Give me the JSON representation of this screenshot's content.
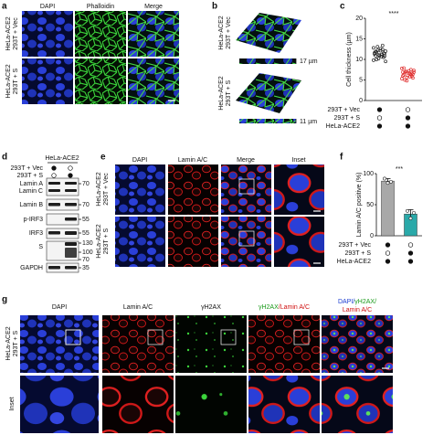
{
  "panels": {
    "a": {
      "label": "a",
      "columns": [
        "DAPI",
        "Phalloidin",
        "Merge"
      ],
      "rows": [
        [
          "HeLa-ACE2",
          "293T + Vec"
        ],
        [
          "HeLa-ACE2",
          "293T + S"
        ]
      ]
    },
    "b": {
      "label": "b",
      "rows": [
        [
          "HeLa-ACE2",
          "293T + Vec"
        ],
        [
          "HeLa-ACE2",
          "293T + S"
        ]
      ],
      "scale_labels": [
        "17 µm",
        "11 µm"
      ]
    },
    "c": {
      "label": "c"
    },
    "d": {
      "label": "d",
      "cell_line": "HeLa-ACE2",
      "conditions": {
        "rows": [
          "293T + Vec",
          "293T + S"
        ],
        "matrix": [
          [
            true,
            false
          ],
          [
            false,
            true
          ]
        ]
      },
      "bands": [
        "Lamin A",
        "Lamin C",
        "Lamin B",
        "p-IRF3",
        "IRF3",
        "S",
        "GAPDH"
      ],
      "markers": [
        70,
        70,
        55,
        55,
        130,
        100,
        70,
        35
      ]
    },
    "e": {
      "label": "e",
      "columns": [
        "DAPI",
        "Lamin A/C",
        "Merge",
        "Inset"
      ],
      "rows": [
        [
          "HeLa-ACE2",
          "293T + Vec"
        ],
        [
          "HeLa-ACE2",
          "293T + S"
        ]
      ]
    },
    "f": {
      "label": "f"
    },
    "g": {
      "label": "g",
      "columns": [
        [
          "DAPI"
        ],
        [
          "Lamin A/C"
        ],
        [
          "γH2AX"
        ],
        [
          "γH2AX",
          "/Lamin A/C"
        ],
        [
          "DAPI/",
          "γH2AX/",
          "Lamin A/C"
        ]
      ],
      "rows": [
        [
          "HeLa-ACE2",
          "293T + S"
        ],
        [
          "Inset"
        ]
      ]
    }
  },
  "chart_data": [
    {
      "type": "strip",
      "ylabel": "Cell thickness (µm)",
      "ylim": [
        0,
        20
      ],
      "yticks": [
        0,
        5,
        10,
        15,
        20
      ],
      "annotation": "****",
      "series": [
        {
          "color": "#222222",
          "values": [
            12.8,
            12.1,
            11.6,
            11.2,
            10.9,
            12.4,
            11.8,
            10.5,
            13.1,
            11.4,
            10.2,
            12.0,
            11.0,
            9.8,
            12.6,
            11.3,
            10.7,
            11.9,
            13.4,
            10.0,
            11.5,
            12.2,
            10.8,
            11.1,
            9.5
          ]
        },
        {
          "color": "#e03030",
          "values": [
            7.8,
            7.2,
            6.9,
            6.5,
            6.2,
            7.5,
            6.8,
            5.9,
            7.0,
            6.4,
            5.6,
            7.3,
            6.1,
            5.3,
            6.7,
            6.0,
            5.8,
            7.9,
            6.3,
            5.0,
            6.6,
            7.1,
            5.5,
            4.8,
            6.9
          ]
        }
      ],
      "conditions": {
        "rows": [
          "293T + Vec",
          "293T + S",
          "HeLa-ACE2"
        ],
        "matrix": [
          [
            true,
            false
          ],
          [
            false,
            true
          ],
          [
            true,
            true
          ]
        ]
      }
    },
    {
      "type": "bar",
      "ylabel": "Lamin A/C positive (%)",
      "ylim": [
        0,
        100
      ],
      "yticks": [
        0,
        50,
        100
      ],
      "annotation": "***",
      "values": [
        88,
        35
      ],
      "errors": [
        4,
        7
      ],
      "points": [
        [
          92,
          85,
          87
        ],
        [
          40,
          28,
          37
        ]
      ],
      "colors": [
        "#a8a8a8",
        "#2aa9a9"
      ],
      "conditions": {
        "rows": [
          "293T + Vec",
          "293T + S",
          "HeLa-ACE2"
        ],
        "matrix": [
          [
            true,
            false
          ],
          [
            false,
            true
          ],
          [
            true,
            true
          ]
        ]
      }
    }
  ]
}
